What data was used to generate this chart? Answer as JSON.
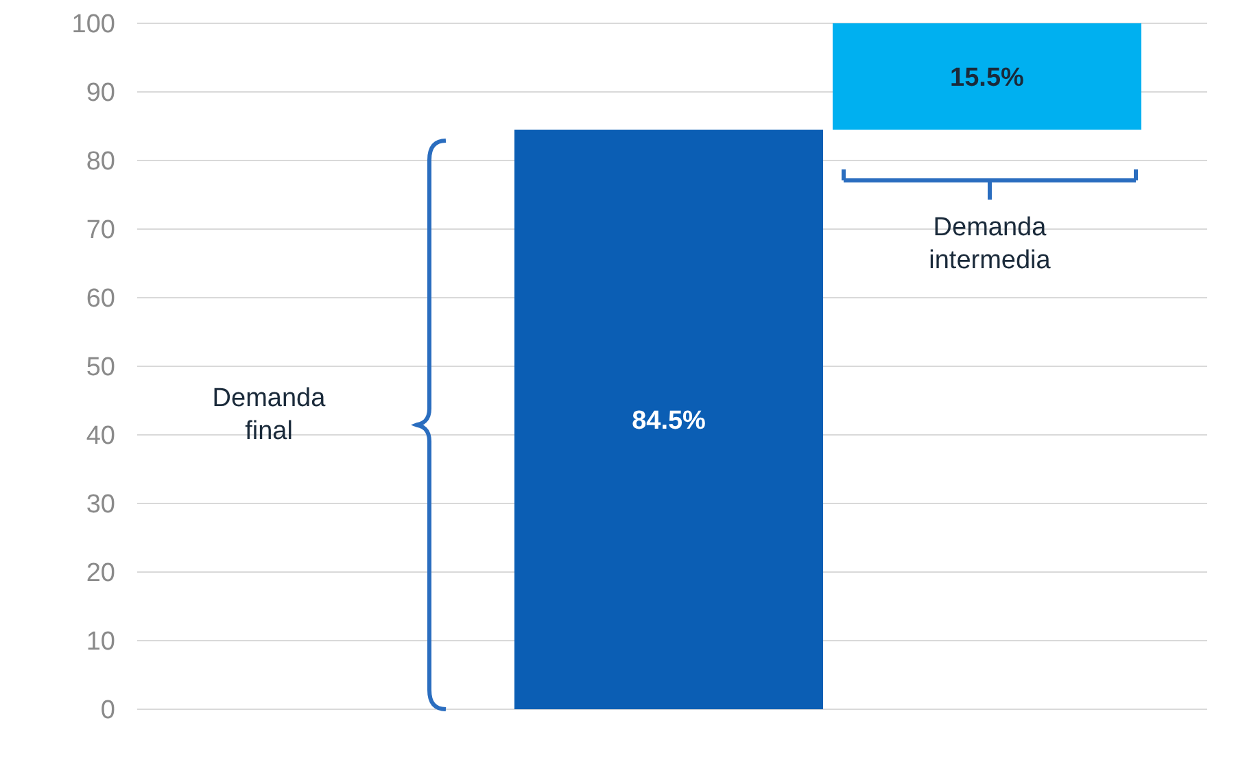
{
  "chart_data": {
    "type": "bar",
    "categories": [
      null,
      null
    ],
    "values": [
      84.5,
      15.5
    ],
    "base": [
      0,
      84.5
    ],
    "colors": [
      "#0b5eb4",
      "#00b0f0"
    ],
    "value_labels": [
      "84.5%",
      "15.5%"
    ],
    "ylim": [
      0,
      100
    ],
    "yticks": [
      0,
      10,
      20,
      30,
      40,
      50,
      60,
      70,
      80,
      90,
      100
    ],
    "grid": "y",
    "annotations": [
      "Demanda final",
      "Demanda intermedia"
    ]
  }
}
